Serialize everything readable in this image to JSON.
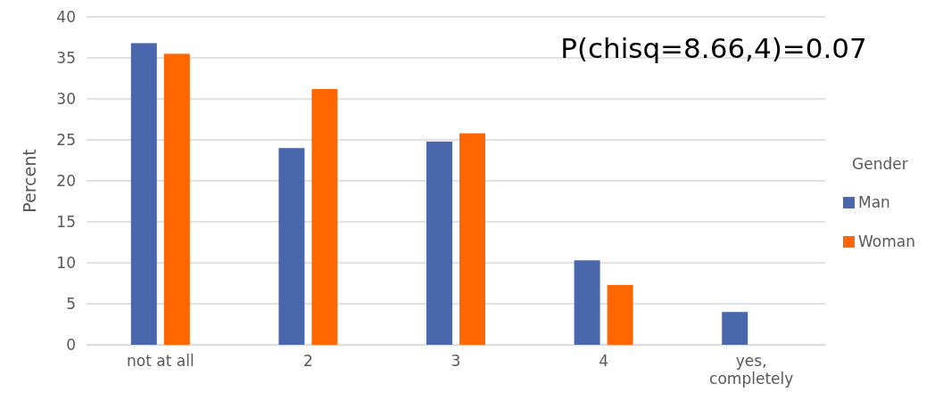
{
  "chart_data": {
    "type": "bar",
    "ylabel": "Percent",
    "legend_title": "Gender",
    "categories": [
      "not at all",
      "2",
      "3",
      "4",
      "yes, completely"
    ],
    "series": [
      {
        "name": "Man",
        "color": "#4a67ad",
        "values": [
          36.8,
          24.0,
          24.8,
          10.3,
          4.0
        ]
      },
      {
        "name": "Woman",
        "color": "#ff6600",
        "values": [
          35.5,
          31.2,
          25.8,
          7.3,
          null
        ]
      }
    ],
    "ylim": [
      0,
      40
    ],
    "yticks": [
      0,
      5,
      10,
      15,
      20,
      25,
      30,
      35,
      40
    ],
    "grid": "y",
    "legend": "right",
    "annotations": [
      "P(chisq=8.66,4)=0.07"
    ]
  }
}
